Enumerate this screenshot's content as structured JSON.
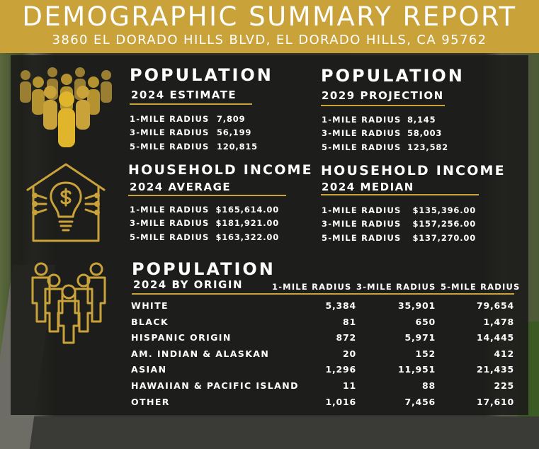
{
  "header": {
    "title": "DEMOGRAPHIC SUMMARY REPORT",
    "address": "3860 EL DORADO HILLS BLVD, EL DORADO HILLS, CA 95762"
  },
  "population_estimate": {
    "title": "POPULATION",
    "subtitle": "2024 ESTIMATE",
    "rows": [
      {
        "label": "1-MILE RADIUS",
        "value": "7,809"
      },
      {
        "label": "3-MILE RADIUS",
        "value": "56,199"
      },
      {
        "label": "5-MILE RADIUS",
        "value": "120,815"
      }
    ]
  },
  "population_projection": {
    "title": "POPULATION",
    "subtitle": "2029 PROJECTION",
    "rows": [
      {
        "label": "1-MILE RADIUS",
        "value": "8,145"
      },
      {
        "label": "3-MILE RADIUS",
        "value": "58,003"
      },
      {
        "label": "5-MILE RADIUS",
        "value": "123,582"
      }
    ]
  },
  "income_average": {
    "title": "HOUSEHOLD INCOME",
    "subtitle": "2024 AVERAGE",
    "rows": [
      {
        "label": "1-MILE RADIUS",
        "value": "$165,614.00"
      },
      {
        "label": "3-MILE RADIUS",
        "value": "$181,921.00"
      },
      {
        "label": "5-MILE RADIUS",
        "value": "$163,322.00"
      }
    ]
  },
  "income_median": {
    "title": "HOUSEHOLD INCOME",
    "subtitle": "2024 MEDIAN",
    "rows": [
      {
        "label": "1-MILE RADIUS",
        "value": "$135,396.00"
      },
      {
        "label": "3-MILE RADIUS",
        "value": "$157,256.00"
      },
      {
        "label": "5-MILE RADIUS",
        "value": "$137,270.00"
      }
    ]
  },
  "origin": {
    "title": "POPULATION",
    "subtitle": "2024 BY ORIGIN",
    "columns": [
      "1-MILE RADIUS",
      "3-MILE RADIUS",
      "5-MILE RADIUS"
    ],
    "rows": [
      {
        "label": "WHITE",
        "values": [
          "5,384",
          "35,901",
          "79,654"
        ]
      },
      {
        "label": "BLACK",
        "values": [
          "81",
          "650",
          "1,478"
        ]
      },
      {
        "label": "HISPANIC ORIGIN",
        "values": [
          "872",
          "5,971",
          "14,445"
        ]
      },
      {
        "label": "AM. INDIAN & ALASKAN",
        "values": [
          "20",
          "152",
          "412"
        ]
      },
      {
        "label": "ASIAN",
        "values": [
          "1,296",
          "11,951",
          "21,435"
        ]
      },
      {
        "label": "HAWAIIAN & PACIFIC ISLAND",
        "values": [
          "11",
          "88",
          "225"
        ]
      },
      {
        "label": "OTHER",
        "values": [
          "1,016",
          "7,456",
          "17,610"
        ]
      }
    ]
  },
  "colors": {
    "gold": "#c9a23a",
    "panel": "#1c1c1a",
    "text": "#ffffff"
  },
  "icons": [
    "people-crowd-icon",
    "house-lightbulb-dollar-icon",
    "people-group-outline-icon"
  ]
}
